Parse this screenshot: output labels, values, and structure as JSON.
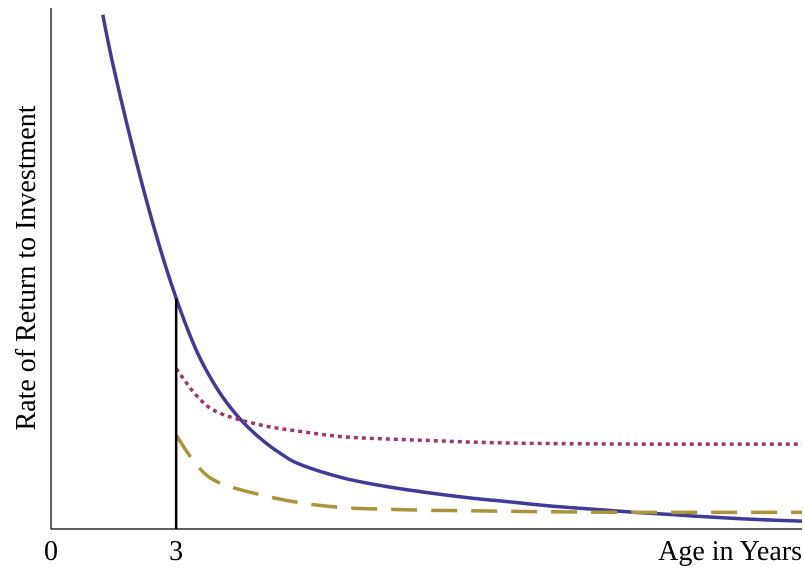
{
  "chart_data": {
    "type": "line",
    "title": "",
    "xlabel": "Age in Years",
    "ylabel": "Rate of Return to Investment",
    "xlim": [
      0,
      18
    ],
    "ylim": [
      0,
      10
    ],
    "x_ticks": [
      {
        "value": 0,
        "label": "0"
      },
      {
        "value": 3,
        "label": "3"
      }
    ],
    "vertical_marker": {
      "x": 3,
      "y_from": 0,
      "y_to": 4.43
    },
    "grid": false,
    "legend": "none",
    "series": [
      {
        "style": "solid",
        "color": "#3f3b96",
        "x": [
          1.24,
          1.5,
          2.0,
          2.5,
          3.0,
          3.5,
          4.0,
          4.5,
          5.0,
          5.5,
          6.0,
          7.0,
          8.0,
          9.0,
          10.0,
          11.0,
          12.0,
          13.0,
          14.0,
          15.0,
          16.0,
          17.0,
          18.0
        ],
        "y": [
          9.87,
          8.86,
          7.19,
          5.7,
          4.43,
          3.4,
          2.67,
          2.14,
          1.75,
          1.45,
          1.23,
          0.98,
          0.82,
          0.7,
          0.6,
          0.52,
          0.44,
          0.38,
          0.32,
          0.27,
          0.22,
          0.18,
          0.15
        ]
      },
      {
        "style": "dotted",
        "color": "#9b3a6a",
        "x": [
          3.0,
          3.5,
          4.0,
          5.0,
          6.0,
          7.0,
          8.0,
          9.0,
          10.0,
          11.0,
          12.0,
          14.0,
          16.0,
          18.0
        ],
        "y": [
          3.08,
          2.55,
          2.24,
          2.0,
          1.87,
          1.77,
          1.73,
          1.7,
          1.67,
          1.65,
          1.64,
          1.63,
          1.63,
          1.63
        ]
      },
      {
        "style": "dashed",
        "color": "#a8953d",
        "x": [
          3.0,
          3.5,
          4.0,
          5.0,
          6.0,
          7.0,
          8.0,
          9.0,
          10.0,
          11.0,
          12.0,
          14.0,
          16.0,
          18.0
        ],
        "y": [
          1.8,
          1.22,
          0.9,
          0.66,
          0.5,
          0.41,
          0.38,
          0.36,
          0.35,
          0.34,
          0.33,
          0.32,
          0.32,
          0.32
        ]
      }
    ]
  }
}
